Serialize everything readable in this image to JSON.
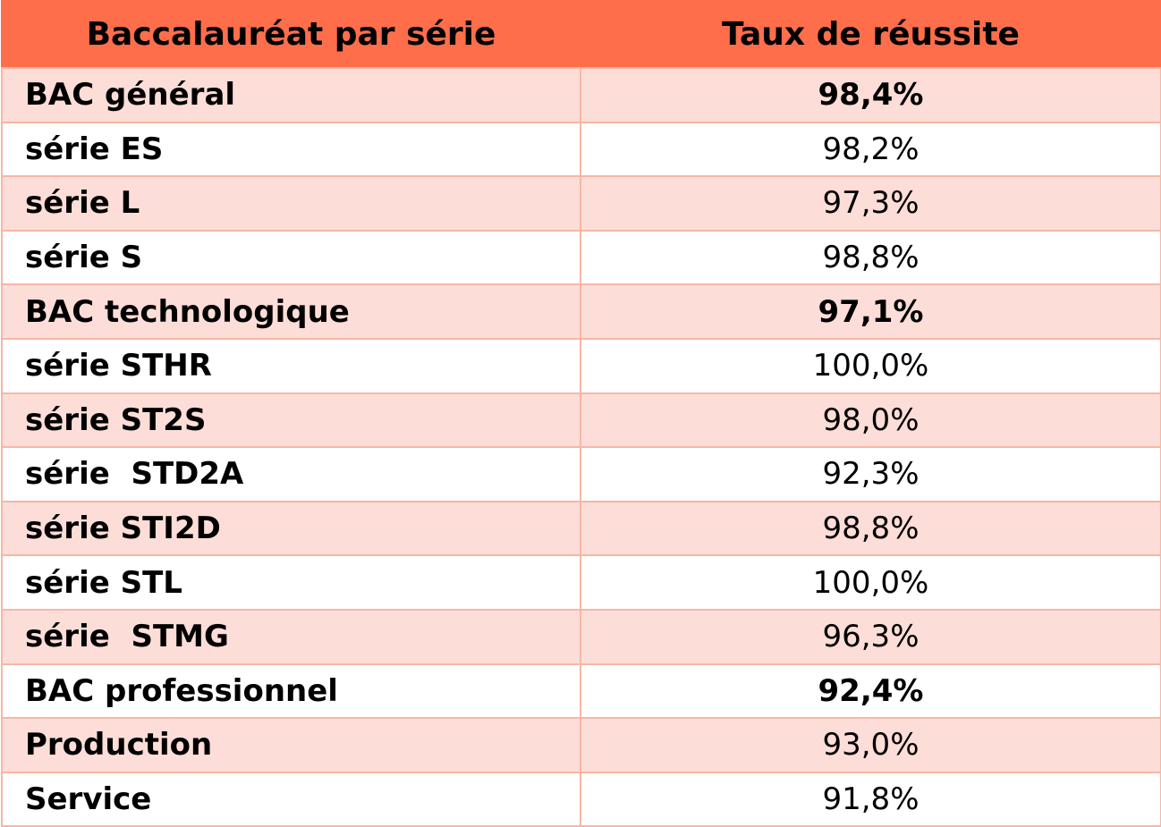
{
  "chart_data": {
    "type": "table",
    "columns": [
      "Baccalauréat par série",
      "Taux de réussite"
    ],
    "rows": [
      {
        "label": "BAC général",
        "value": "98,4%",
        "bold_value": true,
        "shaded": true
      },
      {
        "label": "série ES",
        "value": "98,2%",
        "bold_value": false,
        "shaded": false
      },
      {
        "label": "série L",
        "value": "97,3%",
        "bold_value": false,
        "shaded": true
      },
      {
        "label": "série S",
        "value": "98,8%",
        "bold_value": false,
        "shaded": false
      },
      {
        "label": "BAC technologique",
        "value": "97,1%",
        "bold_value": true,
        "shaded": true
      },
      {
        "label": "série STHR",
        "value": "100,0%",
        "bold_value": false,
        "shaded": false
      },
      {
        "label": "série ST2S",
        "value": "98,0%",
        "bold_value": false,
        "shaded": true
      },
      {
        "label": "série  STD2A",
        "value": "92,3%",
        "bold_value": false,
        "shaded": false
      },
      {
        "label": "série STI2D",
        "value": "98,8%",
        "bold_value": false,
        "shaded": true
      },
      {
        "label": "série STL",
        "value": "100,0%",
        "bold_value": false,
        "shaded": false
      },
      {
        "label": "série  STMG",
        "value": "96,3%",
        "bold_value": false,
        "shaded": true
      },
      {
        "label": "BAC professionnel",
        "value": "92,4%",
        "bold_value": true,
        "shaded": false
      },
      {
        "label": "Production",
        "value": "93,0%",
        "bold_value": false,
        "shaded": true
      },
      {
        "label": "Service",
        "value": "91,8%",
        "bold_value": false,
        "shaded": false
      }
    ],
    "colors": {
      "header_bg": "#ff6e4a",
      "shaded_row_bg": "#fdddd7",
      "plain_row_bg": "#ffffff",
      "border": "#f6b7a6"
    }
  }
}
